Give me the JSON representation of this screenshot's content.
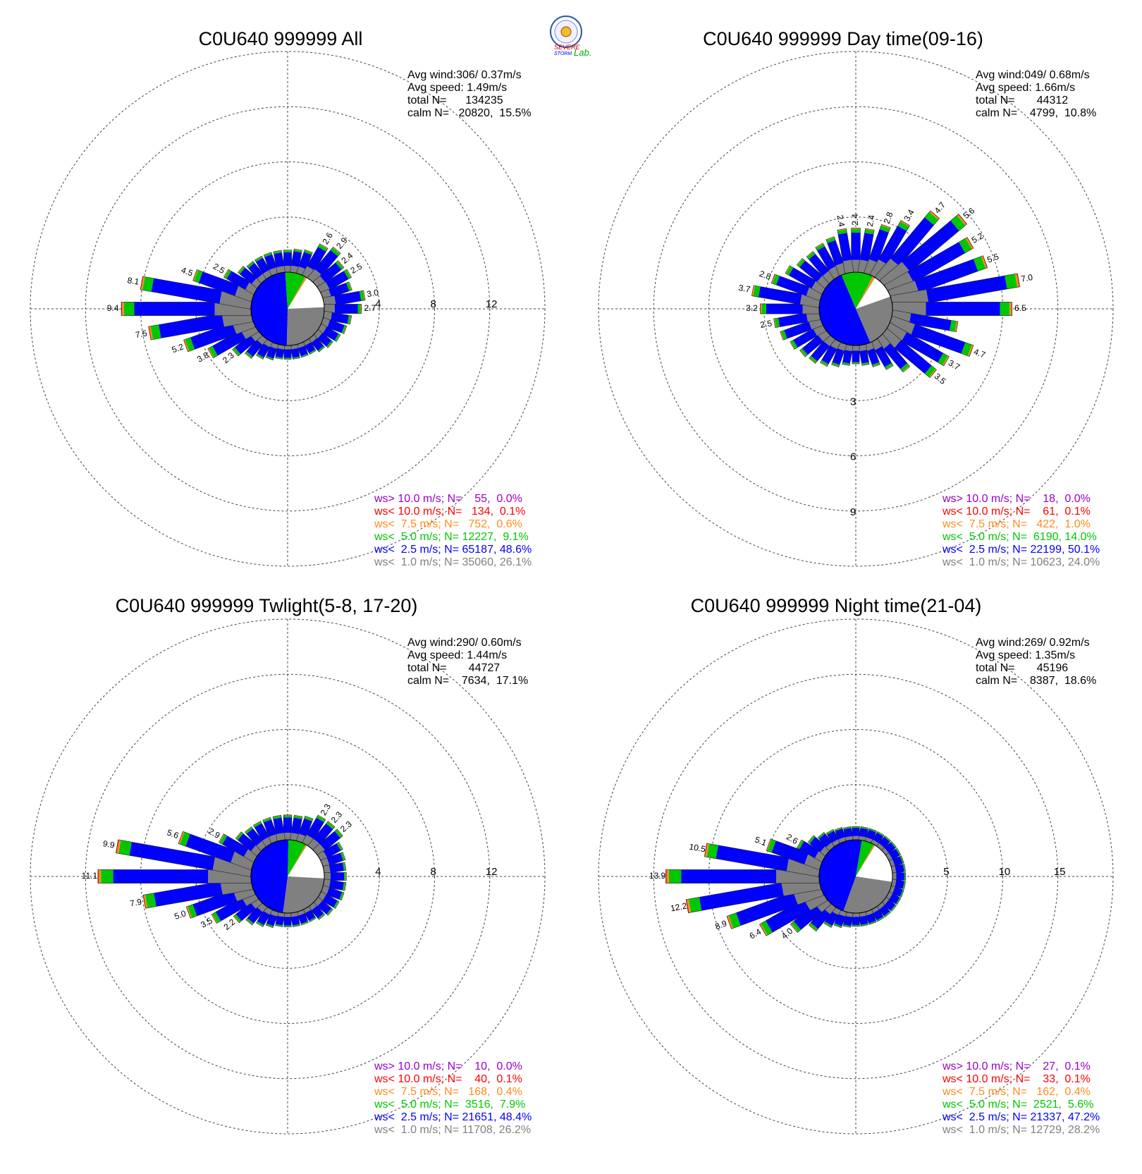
{
  "logo": {
    "text_severe": "SEVERE",
    "text_storm": "STORM",
    "text_lab": "Lab."
  },
  "panels": [
    {
      "title": "C0U640 999999 All",
      "info": [
        "Avg wind:306/ 0.37m/s",
        "Avg speed: 1.49m/s",
        "total N=      134235",
        "calm N=   20820,  15.5%"
      ],
      "legend": [
        "ws> 10.0 m/s; N=    55,  0.0%",
        "ws< 10.0 m/s; N=   134,  0.1%",
        "ws<  7.5 m/s; N=   752,  0.6%",
        "ws<  5.0 m/s; N= 12227,  9.1%",
        "ws<  2.5 m/s; N= 65187, 48.6%",
        "ws<  1.0 m/s; N= 35060, 26.1%"
      ],
      "ring_labels": [
        "4",
        "8",
        "12"
      ],
      "ring_label_axis": "east",
      "ring_values": [
        4,
        8,
        12,
        16
      ],
      "pie": [
        15.5,
        26.1,
        48.6,
        9.1,
        0.6,
        0.1
      ],
      "peak_labels": [
        {
          "dir": 280,
          "label": "8.1"
        },
        {
          "dir": 270,
          "label": "9.4"
        },
        {
          "dir": 260,
          "label": "7.5"
        },
        {
          "dir": 250,
          "label": "5.2"
        },
        {
          "dir": 240,
          "label": "3.8"
        },
        {
          "dir": 230,
          "label": "2.3"
        },
        {
          "dir": 290,
          "label": "4.5"
        },
        {
          "dir": 300,
          "label": "2.5"
        },
        {
          "dir": 30,
          "label": "2.6"
        },
        {
          "dir": 40,
          "label": "2.9"
        },
        {
          "dir": 50,
          "label": "2.4"
        },
        {
          "dir": 60,
          "label": "2.5"
        },
        {
          "dir": 80,
          "label": "3.0"
        },
        {
          "dir": 90,
          "label": "2.7"
        }
      ]
    },
    {
      "title": "C0U640 999999 Day time(09-16)",
      "info": [
        "Avg wind:049/ 0.68m/s",
        "Avg speed: 1.66m/s",
        "total N=       44312",
        "calm N=    4799,  10.8%"
      ],
      "legend": [
        "ws> 10.0 m/s; N=    18,  0.0%",
        "ws< 10.0 m/s; N=    61,  0.1%",
        "ws<  7.5 m/s; N=   422,  1.0%",
        "ws<  5.0 m/s; N=  6190, 14.0%",
        "ws<  2.5 m/s; N= 22199, 50.1%",
        "ws<  1.0 m/s; N= 10623, 24.0%"
      ],
      "ring_labels": [
        "3",
        "6",
        "9"
      ],
      "ring_label_axis": "south",
      "ring_values": [
        3,
        6,
        9,
        12
      ],
      "pie": [
        10.8,
        24.0,
        50.1,
        14.0,
        1.0,
        0.1
      ],
      "peak_labels": [
        {
          "dir": 0,
          "label": "2.4"
        },
        {
          "dir": 10,
          "label": "2.4"
        },
        {
          "dir": 20,
          "label": "2.8"
        },
        {
          "dir": 30,
          "label": "3.4"
        },
        {
          "dir": 40,
          "label": "4.7"
        },
        {
          "dir": 50,
          "label": "5.6"
        },
        {
          "dir": 60,
          "label": "5.2"
        },
        {
          "dir": 70,
          "label": "5.5"
        },
        {
          "dir": 80,
          "label": "7.0"
        },
        {
          "dir": 90,
          "label": "6.5"
        },
        {
          "dir": 110,
          "label": "4.7"
        },
        {
          "dir": 120,
          "label": "3.7"
        },
        {
          "dir": 130,
          "label": "3.5"
        },
        {
          "dir": 350,
          "label": "2.4"
        },
        {
          "dir": 290,
          "label": "2.8"
        },
        {
          "dir": 280,
          "label": "3.7"
        },
        {
          "dir": 270,
          "label": "3.2"
        },
        {
          "dir": 260,
          "label": "2.5"
        }
      ]
    },
    {
      "title": "C0U640 999999 Twlight(5-8, 17-20)",
      "info": [
        "Avg wind:290/ 0.60m/s",
        "Avg speed: 1.44m/s",
        "total N=       44727",
        "calm N=    7634,  17.1%"
      ],
      "legend": [
        "ws> 10.0 m/s; N=    10,  0.0%",
        "ws< 10.0 m/s; N=    40,  0.1%",
        "ws<  7.5 m/s; N=   168,  0.4%",
        "ws<  5.0 m/s; N=  3516,  7.9%",
        "ws<  2.5 m/s; N= 21651, 48.4%",
        "ws<  1.0 m/s; N= 11708, 26.2%"
      ],
      "ring_labels": [
        "4",
        "8",
        "12"
      ],
      "ring_label_axis": "east",
      "ring_values": [
        4,
        8,
        12,
        16
      ],
      "pie": [
        17.1,
        26.2,
        48.4,
        7.9,
        0.4,
        0.1
      ],
      "peak_labels": [
        {
          "dir": 280,
          "label": "9.9"
        },
        {
          "dir": 270,
          "label": "11.1"
        },
        {
          "dir": 260,
          "label": "7.9"
        },
        {
          "dir": 250,
          "label": "5.0"
        },
        {
          "dir": 240,
          "label": "3.5"
        },
        {
          "dir": 230,
          "label": "2.2"
        },
        {
          "dir": 290,
          "label": "5.6"
        },
        {
          "dir": 300,
          "label": "2.9"
        },
        {
          "dir": 30,
          "label": "2.3"
        },
        {
          "dir": 40,
          "label": "2.3"
        },
        {
          "dir": 50,
          "label": "2.3"
        }
      ]
    },
    {
      "title": "C0U640 999999 Night time(21-04)",
      "info": [
        "Avg wind:269/ 0.92m/s",
        "Avg speed: 1.35m/s",
        "total N=       45196",
        "calm N=    8387,  18.6%"
      ],
      "legend": [
        "ws> 10.0 m/s; N=    27,  0.1%",
        "ws< 10.0 m/s; N=    33,  0.1%",
        "ws<  7.5 m/s; N=   162,  0.4%",
        "ws<  5.0 m/s; N=  2521,  5.6%",
        "ws<  2.5 m/s; N= 21337, 47.2%",
        "ws<  1.0 m/s; N= 12729, 28.2%"
      ],
      "ring_labels": [
        "5",
        "10",
        "15"
      ],
      "ring_label_axis": "east",
      "ring_values": [
        5,
        10,
        15,
        20
      ],
      "pie": [
        18.6,
        28.2,
        47.2,
        5.6,
        0.4,
        0.1
      ],
      "peak_labels": [
        {
          "dir": 280,
          "label": "10.5"
        },
        {
          "dir": 270,
          "label": "13.9"
        },
        {
          "dir": 260,
          "label": "12.2"
        },
        {
          "dir": 250,
          "label": "8.9"
        },
        {
          "dir": 240,
          "label": "6.4"
        },
        {
          "dir": 230,
          "label": "4.0"
        },
        {
          "dir": 290,
          "label": "5.1"
        },
        {
          "dir": 300,
          "label": "2.6"
        }
      ]
    }
  ],
  "colors": {
    "over10": "#9900cc",
    "lt10": "#ff0000",
    "lt7_5": "#ff8c1a",
    "lt5": "#00c800",
    "lt2_5": "#0000ff",
    "lt1": "#808080",
    "calm": "#ffffff"
  },
  "chart_data": [
    {
      "type": "wind-rose",
      "title": "C0U640 999999 All",
      "direction_bins_deg": 10,
      "radial_unit": "%",
      "rings": [
        4,
        8,
        12,
        16
      ],
      "categories": [
        "ws< 1.0",
        "ws< 2.5",
        "ws< 5.0",
        "ws< 7.5",
        "ws< 10.0"
      ],
      "peak_freq_by_dir": {
        "0": 1.6,
        "10": 1.7,
        "20": 1.8,
        "30": 2.6,
        "40": 2.9,
        "50": 2.4,
        "60": 2.5,
        "70": 2.2,
        "80": 3.0,
        "90": 2.7,
        "100": 2.0,
        "110": 1.8,
        "120": 1.6,
        "130": 1.4,
        "140": 1.2,
        "150": 1.0,
        "160": 1.0,
        "170": 1.0,
        "180": 1.0,
        "190": 1.0,
        "200": 1.2,
        "210": 1.4,
        "220": 1.8,
        "230": 2.3,
        "240": 3.8,
        "250": 5.2,
        "260": 7.5,
        "270": 9.4,
        "280": 8.1,
        "290": 4.5,
        "300": 2.5,
        "310": 1.8,
        "320": 1.6,
        "330": 1.6,
        "340": 1.6,
        "350": 1.6
      }
    },
    {
      "type": "wind-rose",
      "title": "C0U640 999999 Day time(09-16)",
      "direction_bins_deg": 10,
      "radial_unit": "%",
      "rings": [
        3,
        6,
        9,
        12
      ],
      "categories": [
        "ws< 1.0",
        "ws< 2.5",
        "ws< 5.0",
        "ws< 7.5",
        "ws< 10.0"
      ],
      "peak_freq_by_dir": {
        "0": 2.4,
        "10": 2.4,
        "20": 2.8,
        "30": 3.4,
        "40": 4.7,
        "50": 5.6,
        "60": 5.2,
        "70": 5.5,
        "80": 7.0,
        "90": 6.5,
        "100": 3.6,
        "110": 4.7,
        "120": 3.7,
        "130": 3.5,
        "140": 2.3,
        "150": 1.7,
        "160": 1.3,
        "170": 1.1,
        "180": 1.0,
        "190": 1.1,
        "200": 1.3,
        "210": 1.5,
        "220": 1.7,
        "230": 1.8,
        "240": 2.0,
        "250": 2.3,
        "260": 2.5,
        "270": 3.2,
        "280": 3.7,
        "290": 2.8,
        "300": 2.3,
        "310": 2.0,
        "320": 1.9,
        "330": 2.0,
        "340": 2.1,
        "350": 2.4
      }
    },
    {
      "type": "wind-rose",
      "title": "C0U640 999999 Twlight(5-8, 17-20)",
      "direction_bins_deg": 10,
      "radial_unit": "%",
      "rings": [
        4,
        8,
        12,
        16
      ],
      "categories": [
        "ws< 1.0",
        "ws< 2.5",
        "ws< 5.0",
        "ws< 7.5",
        "ws< 10.0"
      ],
      "peak_freq_by_dir": {
        "0": 1.8,
        "10": 1.8,
        "20": 1.9,
        "30": 2.3,
        "40": 2.3,
        "50": 2.3,
        "60": 1.8,
        "70": 1.7,
        "80": 1.6,
        "90": 1.6,
        "100": 1.6,
        "110": 1.6,
        "120": 1.5,
        "130": 1.4,
        "140": 1.2,
        "150": 1.0,
        "160": 1.0,
        "170": 1.0,
        "180": 1.0,
        "190": 1.0,
        "200": 1.2,
        "210": 1.4,
        "220": 1.7,
        "230": 2.2,
        "240": 3.5,
        "250": 5.0,
        "260": 7.9,
        "270": 11.1,
        "280": 9.9,
        "290": 5.6,
        "300": 2.9,
        "310": 2.0,
        "320": 1.8,
        "330": 1.8,
        "340": 1.8,
        "350": 1.8
      }
    },
    {
      "type": "wind-rose",
      "title": "C0U640 999999 Night time(21-04)",
      "direction_bins_deg": 10,
      "radial_unit": "%",
      "rings": [
        5,
        10,
        15,
        20
      ],
      "categories": [
        "ws< 1.0",
        "ws< 2.5",
        "ws< 5.0",
        "ws< 7.5",
        "ws< 10.0"
      ],
      "peak_freq_by_dir": {
        "0": 1.2,
        "10": 1.2,
        "20": 1.2,
        "30": 1.2,
        "40": 1.2,
        "50": 1.2,
        "60": 1.2,
        "70": 1.2,
        "80": 1.2,
        "90": 1.2,
        "100": 1.2,
        "110": 1.2,
        "120": 1.2,
        "130": 1.2,
        "140": 1.2,
        "150": 1.2,
        "160": 1.2,
        "170": 1.2,
        "180": 1.2,
        "190": 1.3,
        "200": 1.5,
        "210": 1.8,
        "220": 2.8,
        "230": 4.0,
        "240": 6.4,
        "250": 8.9,
        "260": 12.2,
        "270": 13.9,
        "280": 10.5,
        "290": 5.1,
        "300": 2.6,
        "310": 2.0,
        "320": 1.6,
        "330": 1.4,
        "340": 1.3,
        "350": 1.2
      }
    }
  ]
}
